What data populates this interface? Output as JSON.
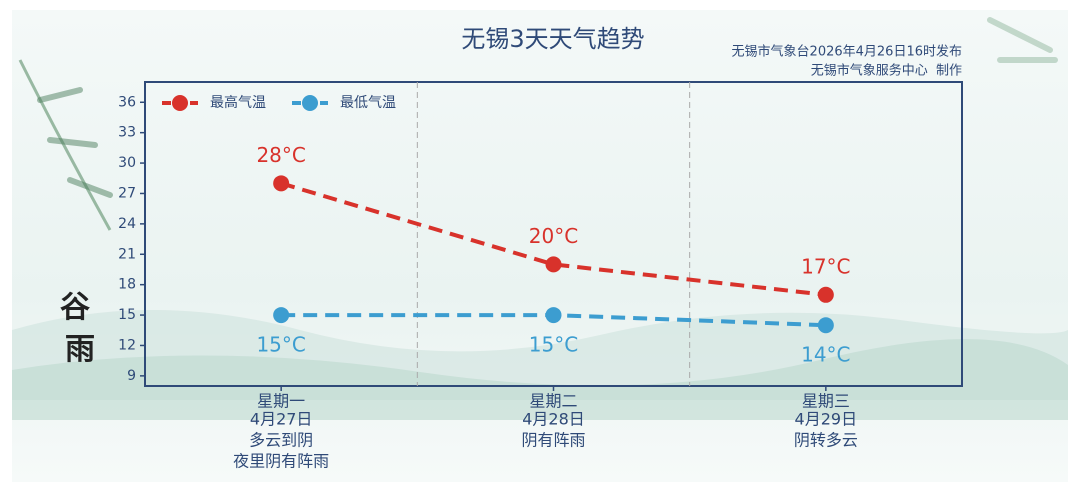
{
  "chart_data": {
    "type": "line",
    "title": "无锡3天天气趋势",
    "subtitle": [
      "无锡市气象台2026年4月26日16时发布",
      "无锡市气象服务中心  制作"
    ],
    "categories": [
      "星期一",
      "星期二",
      "星期三"
    ],
    "dates": [
      "4月27日",
      "4月28日",
      "4月29日"
    ],
    "weather": [
      [
        "多云到阴",
        "夜里阴有阵雨"
      ],
      [
        "阴有阵雨"
      ],
      [
        "阴转多云"
      ]
    ],
    "series": [
      {
        "name": "最高气温",
        "color": "#d8322b",
        "values": [
          28,
          20,
          17
        ],
        "value_labels": [
          "28°C",
          "20°C",
          "17°C"
        ]
      },
      {
        "name": "最低气温",
        "color": "#3c9dd0",
        "values": [
          15,
          15,
          14
        ],
        "value_labels": [
          "15°C",
          "15°C",
          "14°C"
        ]
      }
    ],
    "ylim": [
      8,
      38
    ],
    "yticks": [
      9,
      12,
      15,
      18,
      21,
      24,
      27,
      30,
      33,
      36
    ],
    "badge": [
      "谷",
      "雨"
    ]
  }
}
